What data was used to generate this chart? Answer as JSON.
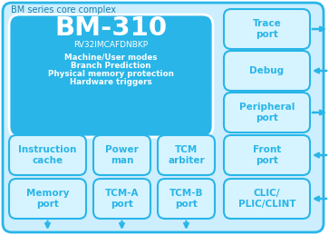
{
  "title": "BM series core complex",
  "bg_outer": "#cceeff",
  "bg_inner": "#29b5e8",
  "outer_edge": "#29b5e8",
  "white": "#ffffff",
  "box_fill": "#d6f4ff",
  "box_edge": "#29b5e8",
  "text_blue": "#29b5e8",
  "text_dark": "#1a7faa",
  "arrow_color": "#29b5e8",
  "cpu_title": "BM-310",
  "cpu_subtitle": "RV32IMCAFDNBKP",
  "cpu_lines": [
    "Machine/User modes",
    "Branch Prediction",
    "Physical memory protection",
    "Hardware triggers"
  ],
  "right_col_labels": [
    "Trace\nport",
    "Debug",
    "Peripheral\nport",
    "Front\nport",
    "CLIC/\nPLIC/CLINT"
  ],
  "right_col_arrows": [
    "out",
    "in",
    "out",
    "in",
    "in"
  ],
  "row1_labels": [
    "Instruction\ncache",
    "Power\nman",
    "TCM\narbiter"
  ],
  "row2_labels": [
    "Memory\nport",
    "TCM-A\nport",
    "TCM-B\nport"
  ],
  "figsize": [
    3.63,
    2.59
  ],
  "dpi": 100
}
